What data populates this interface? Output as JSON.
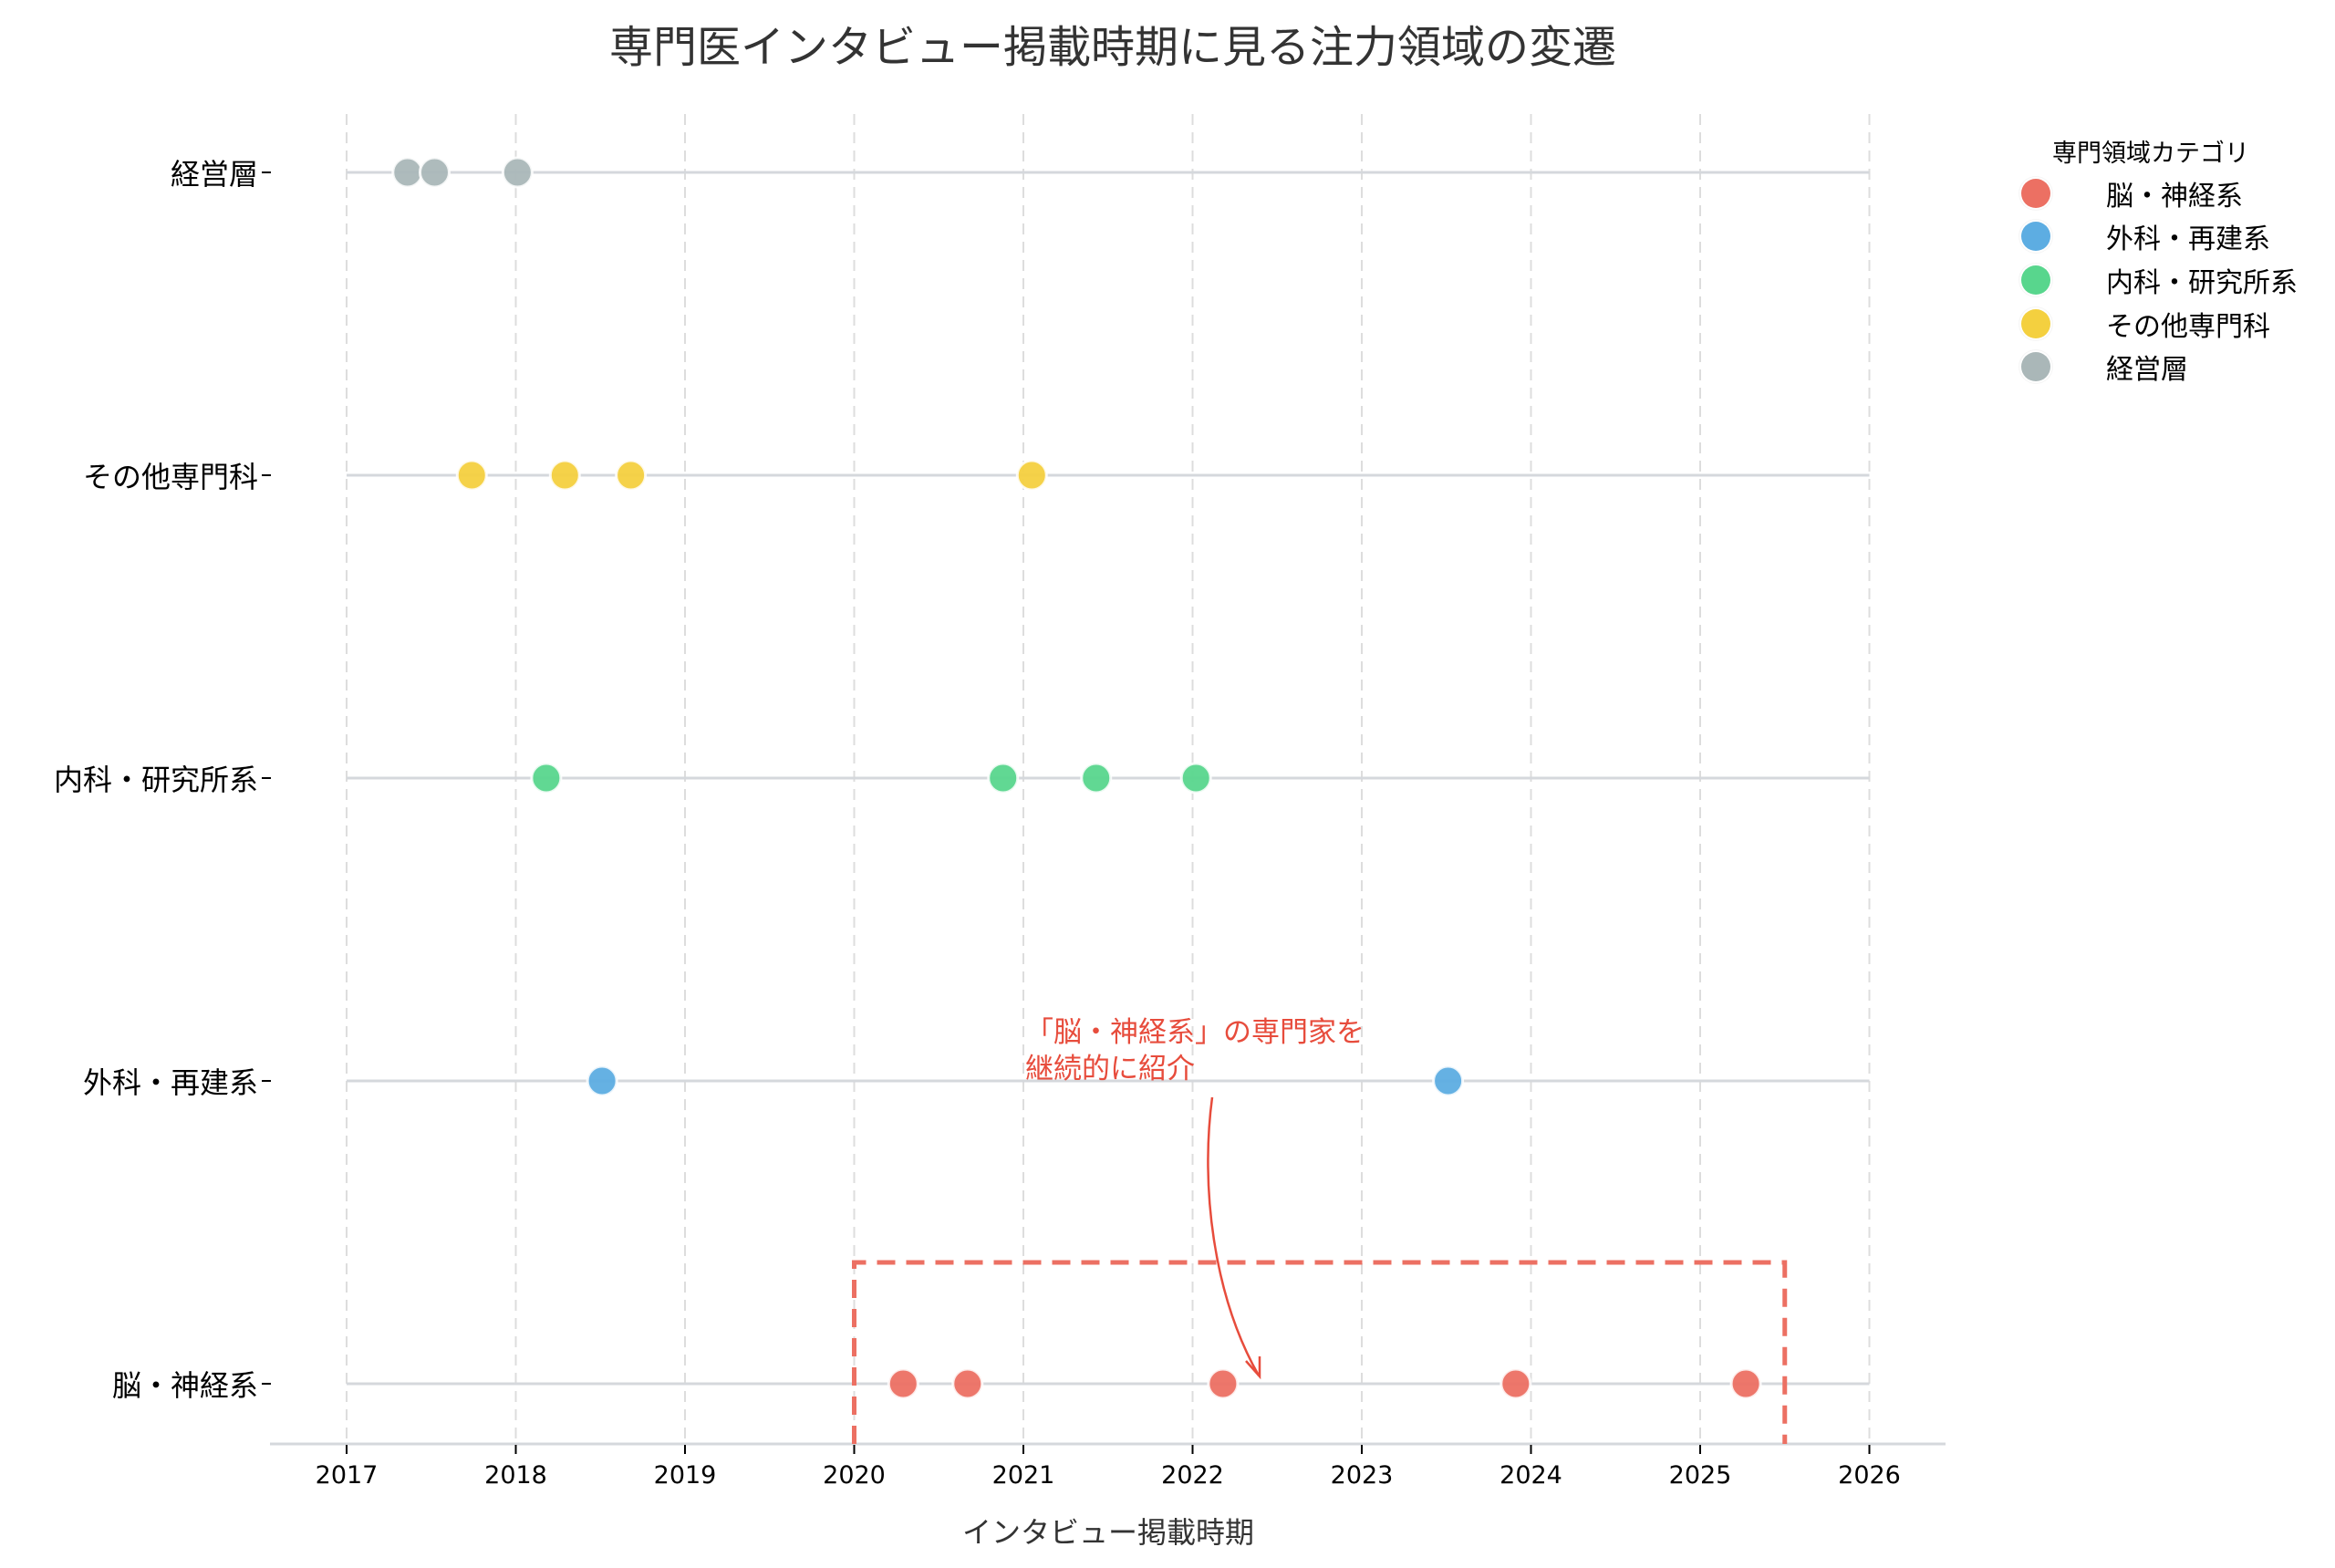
{
  "title": "専門医インタビュー掲載時期に見る注力領域の変遷",
  "xaxis": {
    "label": "インタビュー掲載時期",
    "ticks": [
      "2017",
      "2018",
      "2019",
      "2020",
      "2021",
      "2022",
      "2023",
      "2024",
      "2025",
      "2026"
    ]
  },
  "yaxis": {
    "labels": [
      "経営層",
      "その他専門科",
      "内科・研究所系",
      "外科・再建系",
      "脳・神経系"
    ]
  },
  "legend": {
    "title": "専門領域カテゴリ",
    "items": [
      {
        "label": "脳・神経系",
        "color": "#EC7063"
      },
      {
        "label": "外科・再建系",
        "color": "#5DADE2"
      },
      {
        "label": "内科・研究所系",
        "color": "#58D68D"
      },
      {
        "label": "その他専門科",
        "color": "#F4D03F"
      },
      {
        "label": "経営層",
        "color": "#AAB7B8"
      }
    ]
  },
  "annotation": {
    "line1": "「脳・神経系」の専門家を",
    "line2": "継続的に紹介",
    "color": "#E74C3C",
    "highlight_box": {
      "x_start": 2020.0,
      "x_end": 2025.5
    }
  },
  "chart_data": {
    "type": "scatter",
    "title": "専門医インタビュー掲載時期に見る注力領域の変遷",
    "xlabel": "インタビュー掲載時期",
    "ylabel": "",
    "xlim": [
      2016.55,
      2026.75
    ],
    "xticks": [
      2017,
      2018,
      2019,
      2020,
      2021,
      2022,
      2023,
      2024,
      2025,
      2026
    ],
    "categories": [
      "経営層",
      "その他専門科",
      "内科・研究所系",
      "外科・再建系",
      "脳・神経系"
    ],
    "grid": {
      "x": "dashed",
      "y": "solid per category"
    },
    "legend_position": "upper right outside",
    "series": [
      {
        "name": "脳・神経系",
        "color": "#EC7063",
        "y": "脳・神経系",
        "x": [
          2020.29,
          2020.67,
          2022.18,
          2023.91,
          2025.27
        ]
      },
      {
        "name": "外科・再建系",
        "color": "#5DADE2",
        "y": "外科・再建系",
        "x": [
          2018.51,
          2023.51
        ]
      },
      {
        "name": "内科・研究所系",
        "color": "#58D68D",
        "y": "内科・研究所系",
        "x": [
          2018.18,
          2020.88,
          2021.43,
          2022.02
        ]
      },
      {
        "name": "その他専門科",
        "color": "#F4D03F",
        "y": "その他専門科",
        "x": [
          2017.74,
          2018.29,
          2018.68,
          2021.05
        ]
      },
      {
        "name": "経営層",
        "color": "#AAB7B8",
        "y": "経営層",
        "x": [
          2017.36,
          2017.52,
          2018.01
        ]
      }
    ],
    "annotations": [
      {
        "text": "「脳・神経系」の専門家を\n継続的に紹介",
        "arrow_to": {
          "x": 2022.4,
          "y": "脳・神経系"
        }
      },
      {
        "type": "dashed-rectangle",
        "x": [
          2020.0,
          2025.5
        ],
        "y_range": "脳・神経系 row",
        "color": "#E74C3C"
      }
    ]
  }
}
